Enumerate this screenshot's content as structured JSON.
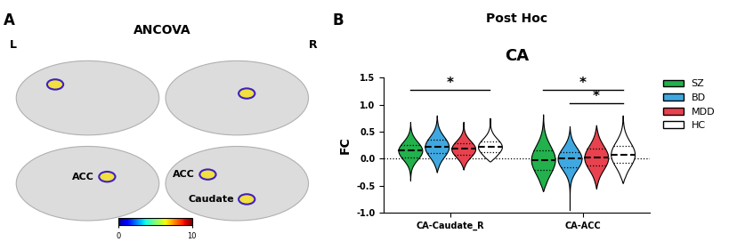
{
  "chart_data": [
    {
      "type": "brain_map",
      "panel": "A",
      "title": "ANCOVA",
      "hemisphere_labels": [
        "L",
        "R"
      ],
      "annotations": [
        "ACC",
        "ACC",
        "Caudate"
      ],
      "colorbar": {
        "range": [
          0,
          10
        ],
        "ticks": [
          0,
          10
        ]
      }
    },
    {
      "type": "violin",
      "panel": "B",
      "subtitle": "Post Hoc",
      "title": "CA",
      "ylabel": "FC",
      "categories": [
        "CA-Caudate_R",
        "CA-ACC"
      ],
      "ylim": [
        -1.0,
        1.5
      ],
      "yticks": [
        {
          "value": -1.0,
          "label": "-1.0"
        },
        {
          "value": -0.5,
          "label": "-0.5"
        },
        {
          "value": 0.0,
          "label": "0.0"
        },
        {
          "value": 0.5,
          "label": "0.5"
        },
        {
          "value": 1.0,
          "label": "1.0"
        },
        {
          "value": 1.5,
          "label": "1.5"
        }
      ],
      "reference_line": 0,
      "legend": "upper left",
      "series": [
        {
          "name": "SZ",
          "color": "#22b14c",
          "values": [
            {
              "min": -0.4,
              "q1": 0.03,
              "median": 0.15,
              "q3": 0.25,
              "max": 0.68
            },
            {
              "min": -0.6,
              "q1": -0.2,
              "median": -0.02,
              "q3": 0.15,
              "max": 0.82
            }
          ]
        },
        {
          "name": "BD",
          "color": "#40a8e0",
          "values": [
            {
              "min": -0.25,
              "q1": 0.1,
              "median": 0.22,
              "q3": 0.35,
              "max": 0.8
            },
            {
              "min": -0.95,
              "q1": -0.15,
              "median": 0.0,
              "q3": 0.12,
              "max": 0.6
            }
          ]
        },
        {
          "name": "MDD",
          "color": "#e8424f",
          "values": [
            {
              "min": -0.2,
              "q1": 0.08,
              "median": 0.18,
              "q3": 0.28,
              "max": 0.68
            },
            {
              "min": -0.55,
              "q1": -0.12,
              "median": 0.02,
              "q3": 0.18,
              "max": 0.62
            }
          ]
        },
        {
          "name": "HC",
          "color": "#ffffff",
          "values": [
            {
              "min": -0.05,
              "q1": 0.12,
              "median": 0.22,
              "q3": 0.32,
              "max": 0.75
            },
            {
              "min": -0.45,
              "q1": -0.08,
              "median": 0.08,
              "q3": 0.23,
              "max": 0.8
            }
          ]
        }
      ],
      "significance": [
        {
          "category": "CA-Caudate_R",
          "groups": [
            "SZ",
            "HC"
          ],
          "label": "*",
          "y": 1.27
        },
        {
          "category": "CA-ACC",
          "groups": [
            "SZ",
            "HC"
          ],
          "label": "*",
          "y": 1.27
        },
        {
          "category": "CA-ACC",
          "groups": [
            "BD",
            "HC"
          ],
          "label": "*",
          "y": 1.03
        }
      ]
    }
  ]
}
